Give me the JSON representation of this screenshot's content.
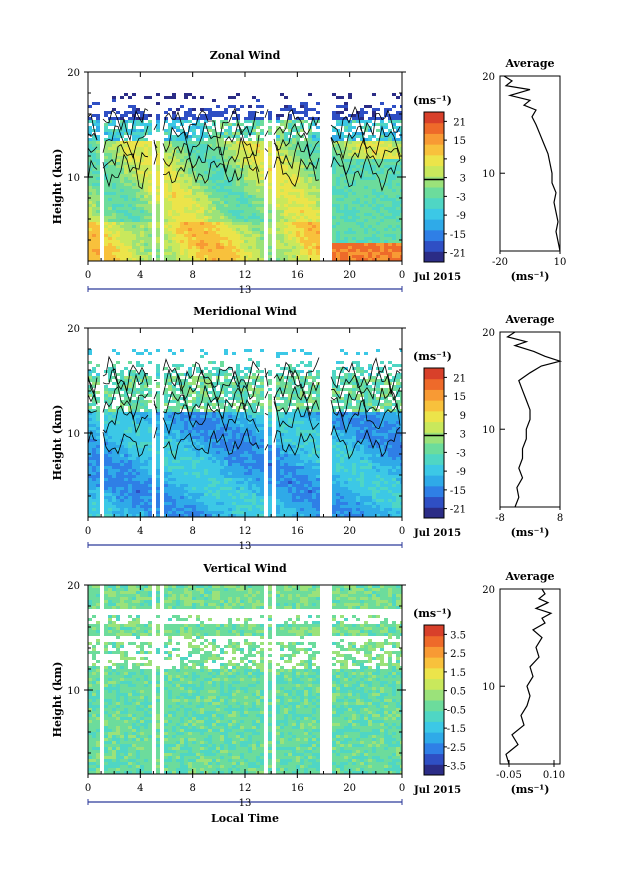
{
  "figure": {
    "month_label": "Jul 2015",
    "day_label": "13",
    "xlabel": "Local Time",
    "ylabel": "Height (km)",
    "unit_label": "(ms⁻¹)",
    "avg_title": "Average"
  },
  "chart_data": [
    {
      "type": "heatmap",
      "title": "Zonal Wind",
      "x_ticks": [
        "0",
        "4",
        "8",
        "12",
        "16",
        "20",
        "0"
      ],
      "xlim": [
        0,
        24
      ],
      "y_ticks": [
        "20",
        "10"
      ],
      "ylim": [
        2,
        20
      ],
      "colorbar_ticks": [
        "21",
        "15",
        "9",
        "3",
        "-3",
        "-9",
        "-15",
        "-21"
      ],
      "colorbar_range": [
        -24,
        24
      ],
      "data_gaps_hours": [
        [
          0.7,
          1.0
        ],
        [
          4.6,
          4.9
        ],
        [
          5.3,
          5.6
        ],
        [
          13.2,
          13.5
        ],
        [
          13.9,
          14.2
        ],
        [
          17.7,
          18.4
        ]
      ],
      "grid": false
    },
    {
      "type": "line",
      "title": "Average",
      "xlim": [
        -20,
        10
      ],
      "x_ticks": [
        "-20",
        "10"
      ],
      "ylim": [
        2,
        20
      ],
      "y_ticks": [
        "20",
        "10"
      ],
      "xlabel": "(ms⁻¹)",
      "series": [
        {
          "x": [
            10,
            9,
            8,
            9,
            8,
            7,
            8,
            6,
            6,
            5,
            4,
            2,
            0,
            -2,
            -4,
            -2,
            -8,
            -5,
            -15,
            -5,
            -17,
            -14,
            -18
          ],
          "y": [
            2,
            3,
            4,
            5,
            6,
            7,
            8,
            9,
            10,
            11,
            12,
            13,
            14,
            15,
            15.8,
            16.5,
            17,
            17.5,
            18,
            18.6,
            19,
            19.5,
            20
          ]
        }
      ]
    },
    {
      "type": "heatmap",
      "title": "Meridional Wind",
      "x_ticks": [
        "0",
        "4",
        "8",
        "12",
        "16",
        "20",
        "0"
      ],
      "xlim": [
        0,
        24
      ],
      "y_ticks": [
        "20",
        "10"
      ],
      "ylim": [
        2,
        20
      ],
      "colorbar_ticks": [
        "21",
        "15",
        "9",
        "3",
        "-3",
        "-9",
        "-15",
        "-21"
      ],
      "colorbar_range": [
        -24,
        24
      ],
      "data_gaps_hours": [
        [
          0.7,
          1.0
        ],
        [
          4.6,
          4.9
        ],
        [
          5.3,
          5.6
        ],
        [
          13.2,
          13.5
        ],
        [
          13.9,
          14.2
        ],
        [
          17.7,
          18.4
        ]
      ],
      "grid": false
    },
    {
      "type": "line",
      "title": "Average",
      "xlim": [
        -8,
        8
      ],
      "x_ticks": [
        "-8",
        "8"
      ],
      "ylim": [
        2,
        20
      ],
      "y_ticks": [
        "20",
        "10"
      ],
      "xlabel": "(ms⁻¹)",
      "series": [
        {
          "x": [
            -4,
            -3,
            -3.5,
            -2,
            -3,
            -2,
            -2,
            -1,
            -1,
            0,
            0,
            -1,
            -2,
            -3,
            0,
            3,
            8,
            4,
            1,
            -4,
            -1,
            -6,
            -4
          ],
          "y": [
            2,
            3,
            4,
            5,
            6,
            7,
            8,
            9,
            10,
            11,
            12,
            13,
            14,
            15,
            15.8,
            16.5,
            17,
            17.5,
            18,
            18.6,
            19,
            19.5,
            20
          ]
        }
      ]
    },
    {
      "type": "heatmap",
      "title": "Vertical Wind",
      "x_ticks": [
        "0",
        "4",
        "8",
        "12",
        "16",
        "20",
        "0"
      ],
      "xlim": [
        0,
        24
      ],
      "y_ticks": [
        "20",
        "10"
      ],
      "ylim": [
        2,
        20
      ],
      "colorbar_ticks": [
        "3.5",
        "2.5",
        "1.5",
        "0.5",
        "-0.5",
        "-1.5",
        "-2.5",
        "-3.5"
      ],
      "colorbar_range": [
        -4,
        4
      ],
      "data_gaps_hours": [
        [
          0.7,
          1.0
        ],
        [
          4.6,
          4.9
        ],
        [
          5.3,
          5.6
        ],
        [
          13.2,
          13.5
        ],
        [
          13.9,
          14.2
        ],
        [
          17.7,
          18.4
        ]
      ],
      "grid": false
    },
    {
      "type": "line",
      "title": "Average",
      "xlim": [
        -0.08,
        0.12
      ],
      "x_ticks": [
        "-0.05",
        "0.10"
      ],
      "ylim": [
        2,
        20
      ],
      "y_ticks": [
        "20",
        "10"
      ],
      "xlabel": "(ms⁻¹)",
      "series": [
        {
          "x": [
            -0.05,
            -0.06,
            -0.02,
            -0.04,
            0.0,
            -0.01,
            0.01,
            0.02,
            0.01,
            0.03,
            0.02,
            0.05,
            0.04,
            0.06,
            0.03,
            0.07,
            0.06,
            0.09,
            0.04,
            0.08,
            0.05,
            0.07,
            0.06
          ],
          "y": [
            2,
            3,
            4,
            5,
            6,
            7,
            8,
            9,
            10,
            11,
            12,
            13,
            14,
            15,
            15.8,
            16.5,
            17,
            17.5,
            18,
            18.6,
            19,
            19.5,
            20
          ]
        }
      ]
    }
  ]
}
